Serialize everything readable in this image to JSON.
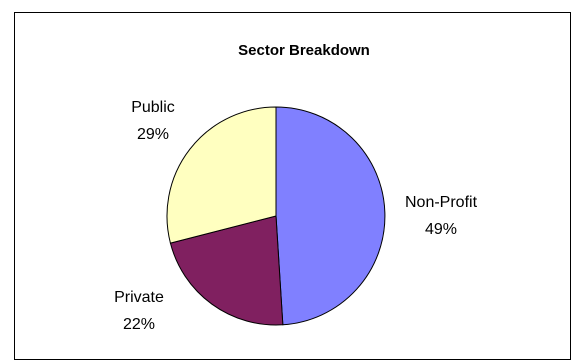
{
  "chart_data": {
    "type": "pie",
    "title": "Sector Breakdown",
    "slices": [
      {
        "label": "Non-Profit",
        "percent_label": "49%",
        "value": 49,
        "color": "#8080FF"
      },
      {
        "label": "Private",
        "percent_label": "22%",
        "value": 22,
        "color": "#802060"
      },
      {
        "label": "Public",
        "percent_label": "29%",
        "value": 29,
        "color": "#FFFFC0"
      }
    ],
    "legend": "none"
  }
}
